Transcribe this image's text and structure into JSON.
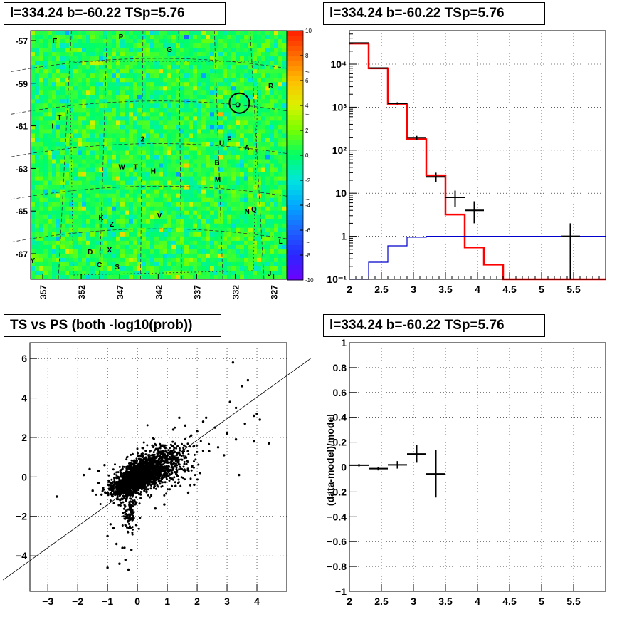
{
  "panels": {
    "tl": {
      "title": "l=334.24 b=-60.22 TSp=5.76"
    },
    "tr": {
      "title": "l=334.24 b=-60.22 TSp=5.76"
    },
    "bl": {
      "title": "TS vs PS (both -log10(prob))"
    },
    "br": {
      "title": "l=334.24 b=-60.22 TSp=5.76"
    }
  },
  "chart_data": [
    {
      "id": "skymap",
      "type": "heatmap",
      "title": "l=334.24 b=-60.22 TSp=5.76",
      "x_ticks": [
        "357",
        "352",
        "347",
        "342",
        "337",
        "332",
        "327"
      ],
      "y_ticks": [
        "-57",
        "-59",
        "-61",
        "-63",
        "-65",
        "-67"
      ],
      "colorbar_ticks": [
        "10",
        "8",
        "6",
        "4",
        "2",
        "0",
        "-2",
        "-4",
        "-6",
        "-8",
        "-10"
      ],
      "zlim": [
        -10,
        10
      ],
      "source_labels": [
        {
          "t": "E",
          "l": 356.3,
          "b": -57.1
        },
        {
          "t": "P",
          "l": 347.7,
          "b": -56.9
        },
        {
          "t": "G",
          "l": 341.4,
          "b": -57.5
        },
        {
          "t": "R",
          "l": 328.2,
          "b": -59.2
        },
        {
          "t": "O",
          "l": 332.5,
          "b": -60.1
        },
        {
          "t": "T",
          "l": 355.7,
          "b": -60.7
        },
        {
          "t": "I",
          "l": 356.6,
          "b": -61.1
        },
        {
          "t": "2",
          "l": 344.9,
          "b": -61.7
        },
        {
          "t": "F",
          "l": 333.6,
          "b": -61.7
        },
        {
          "t": "U",
          "l": 334.6,
          "b": -61.9
        },
        {
          "t": "A",
          "l": 331.3,
          "b": -62.1
        },
        {
          "t": "B",
          "l": 335.2,
          "b": -62.8
        },
        {
          "t": "W",
          "l": 347.6,
          "b": -63.0
        },
        {
          "t": "T",
          "l": 345.8,
          "b": -63.0
        },
        {
          "t": "H",
          "l": 343.5,
          "b": -63.2
        },
        {
          "t": "M",
          "l": 335.1,
          "b": -63.6
        },
        {
          "t": "N",
          "l": 331.3,
          "b": -65.1
        },
        {
          "t": "Q",
          "l": 330.4,
          "b": -65.0
        },
        {
          "t": "K",
          "l": 350.3,
          "b": -65.4
        },
        {
          "t": "V",
          "l": 342.7,
          "b": -65.3
        },
        {
          "t": "Z",
          "l": 348.9,
          "b": -65.7
        },
        {
          "t": "L",
          "l": 326.9,
          "b": -66.5
        },
        {
          "t": "D",
          "l": 351.7,
          "b": -67.0
        },
        {
          "t": "X",
          "l": 349.2,
          "b": -66.9
        },
        {
          "t": "Y",
          "l": 359.2,
          "b": -67.4
        },
        {
          "t": "C",
          "l": 350.5,
          "b": -67.6
        },
        {
          "t": "S",
          "l": 348.2,
          "b": -67.7
        },
        {
          "t": "J",
          "l": 328.4,
          "b": -68.0
        }
      ],
      "marker": {
        "l": 332.3,
        "b": -59.9
      }
    },
    {
      "id": "spectrum",
      "type": "line",
      "title": "l=334.24 b=-60.22 TSp=5.76",
      "yscale": "log",
      "xlim": [
        2,
        6
      ],
      "ylim": [
        0.1,
        60000
      ],
      "x_ticks": [
        "2",
        "2.5",
        "3",
        "3.5",
        "4",
        "4.5",
        "5",
        "5.5"
      ],
      "y_ticks": [
        "10⁻¹",
        "1",
        "10",
        "10²",
        "10³",
        "10⁴"
      ],
      "grid": true,
      "series": [
        {
          "color": "#ff0000",
          "style": "step",
          "edges": [
            2.0,
            2.3,
            2.6,
            2.9,
            3.2,
            3.5,
            3.8,
            4.1,
            4.4,
            6.0
          ],
          "values": [
            30000,
            8000,
            1200,
            180,
            26,
            3.2,
            0.55,
            0.22,
            0.08
          ]
        },
        {
          "color": "#0000cc",
          "style": "step",
          "edges": [
            2.0,
            2.3,
            2.6,
            2.9,
            3.2,
            3.5,
            3.8,
            4.1,
            4.4,
            6.0
          ],
          "values": [
            0.08,
            0.25,
            0.6,
            0.95,
            1.0,
            1.0,
            1.0,
            1.0,
            1.0
          ]
        },
        {
          "color": "#000000",
          "style": "errorbar",
          "points": [
            {
              "x": 2.15,
              "y": 31000,
              "xerr": 0.15,
              "ylo": 30500,
              "yhi": 31500
            },
            {
              "x": 2.45,
              "y": 8100,
              "xerr": 0.15,
              "ylo": 7900,
              "yhi": 8300
            },
            {
              "x": 2.75,
              "y": 1230,
              "xerr": 0.15,
              "ylo": 1160,
              "yhi": 1300
            },
            {
              "x": 3.05,
              "y": 195,
              "xerr": 0.15,
              "ylo": 175,
              "yhi": 215
            },
            {
              "x": 3.35,
              "y": 24,
              "xerr": 0.15,
              "ylo": 18,
              "yhi": 30
            },
            {
              "x": 3.65,
              "y": 8,
              "xerr": 0.15,
              "ylo": 4.8,
              "yhi": 11.5
            },
            {
              "x": 3.95,
              "y": 4,
              "xerr": 0.15,
              "ylo": 2,
              "yhi": 6.5
            },
            {
              "x": 5.45,
              "y": 1,
              "xerr": 0.15,
              "ylo": 0.1,
              "yhi": 2
            }
          ]
        }
      ]
    },
    {
      "id": "ts-vs-ps",
      "type": "scatter",
      "title": "TS vs PS (both -log10(prob))",
      "xlim": [
        -3.6,
        5.0
      ],
      "ylim": [
        -5.8,
        6.8
      ],
      "x_ticks": [
        "−3",
        "−2",
        "−1",
        "0",
        "1",
        "2",
        "3",
        "4"
      ],
      "y_ticks": [
        "−4",
        "−2",
        "0",
        "2",
        "4",
        "6"
      ],
      "grid": true,
      "fit_line": {
        "slope": 1.09,
        "intercept": -0.32
      },
      "clusters": [
        {
          "cx": 0.0,
          "cy": 0.0,
          "sx": 0.28,
          "sy": 0.35,
          "rho": 0.45,
          "n": 1100
        },
        {
          "cx": 0.5,
          "cy": 0.45,
          "sx": 0.45,
          "sy": 0.55,
          "rho": 0.35,
          "n": 700
        },
        {
          "cx": -0.4,
          "cy": -0.4,
          "sx": 0.3,
          "sy": 0.35,
          "rho": 0.4,
          "n": 500
        },
        {
          "cx": -0.25,
          "cy": -1.6,
          "sx": 0.12,
          "sy": 0.6,
          "rho": 0.0,
          "n": 120
        },
        {
          "cx": 1.1,
          "cy": 0.7,
          "sx": 0.55,
          "sy": 0.6,
          "rho": 0.3,
          "n": 220
        }
      ],
      "outliers": [
        [
          3.2,
          5.8
        ],
        [
          3.7,
          4.9
        ],
        [
          3.5,
          4.6
        ],
        [
          3.1,
          3.8
        ],
        [
          3.3,
          3.5
        ],
        [
          3.9,
          3.1
        ],
        [
          4.0,
          3.2
        ],
        [
          3.6,
          2.7
        ],
        [
          4.1,
          2.9
        ],
        [
          3.0,
          2.2
        ],
        [
          2.6,
          2.5
        ],
        [
          2.3,
          3.0
        ],
        [
          2.2,
          2.8
        ],
        [
          2.0,
          2.3
        ],
        [
          4.4,
          1.7
        ],
        [
          3.9,
          1.8
        ],
        [
          3.3,
          1.9
        ],
        [
          2.7,
          1.5
        ],
        [
          2.4,
          1.3
        ],
        [
          2.9,
          1.1
        ],
        [
          1.6,
          2.6
        ],
        [
          1.8,
          2.1
        ],
        [
          1.2,
          2.4
        ],
        [
          1.4,
          3.0
        ],
        [
          -1.3,
          -0.3
        ],
        [
          -1.5,
          -0.7
        ],
        [
          -1.2,
          -0.9
        ],
        [
          -1.1,
          0.6
        ],
        [
          -1.3,
          0.3
        ],
        [
          -2.7,
          -1.0
        ],
        [
          -0.9,
          -2.4
        ],
        [
          -1.0,
          -3.0
        ],
        [
          -0.8,
          -2.6
        ],
        [
          -1.0,
          -4.6
        ],
        [
          -0.6,
          -4.4
        ],
        [
          -0.3,
          -4.7
        ],
        [
          -0.4,
          -4.2
        ],
        [
          -0.2,
          -3.7
        ],
        [
          -0.5,
          -3.6
        ],
        [
          -0.7,
          -3.4
        ],
        [
          3.4,
          0.1
        ],
        [
          1.9,
          -0.4
        ],
        [
          2.1,
          0.2
        ],
        [
          1.7,
          -0.8
        ],
        [
          0.9,
          -1.4
        ],
        [
          0.6,
          -1.6
        ],
        [
          -1.8,
          0.1
        ],
        [
          -1.6,
          0.4
        ]
      ]
    },
    {
      "id": "residuals",
      "type": "scatter",
      "title": "l=334.24 b=-60.22 TSp=5.76",
      "xlim": [
        2,
        6
      ],
      "ylim": [
        -1,
        1
      ],
      "ylabel": "(data-model)/model",
      "x_ticks": [
        "2",
        "2.5",
        "3",
        "3.5",
        "4",
        "4.5",
        "5",
        "5.5"
      ],
      "y_ticks": [
        "−1",
        "−0.8",
        "−0.6",
        "−0.4",
        "−0.2",
        "0",
        "0.2",
        "0.4",
        "0.6",
        "0.8",
        "1"
      ],
      "grid": true,
      "points": [
        {
          "x": 2.15,
          "y": 0.015,
          "xerr": 0.15,
          "yerr": 0.01
        },
        {
          "x": 2.45,
          "y": -0.012,
          "xerr": 0.15,
          "yerr": 0.015
        },
        {
          "x": 2.75,
          "y": 0.018,
          "xerr": 0.15,
          "yerr": 0.03
        },
        {
          "x": 3.05,
          "y": 0.105,
          "xerr": 0.15,
          "yerr": 0.07
        },
        {
          "x": 3.35,
          "y": -0.055,
          "xerr": 0.15,
          "yerr": 0.19
        }
      ]
    }
  ]
}
